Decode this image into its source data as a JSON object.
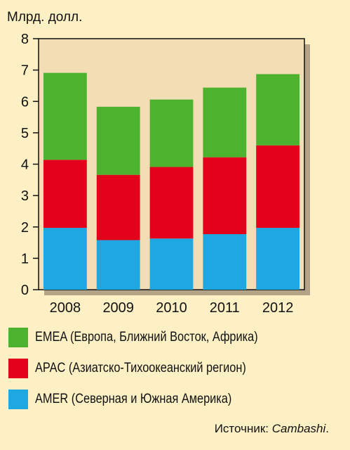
{
  "chart_data": {
    "type": "bar",
    "stacked": true,
    "ylabel": "Млрд. долл.",
    "ylim": [
      0,
      8
    ],
    "yticks": [
      0,
      1,
      2,
      3,
      4,
      5,
      6,
      7,
      8
    ],
    "categories": [
      "2008",
      "2009",
      "2010",
      "2011",
      "2012"
    ],
    "series": [
      {
        "name": "AMER (Северная и Южная Америка)",
        "color": "#1ea7e1",
        "values": [
          1.97,
          1.58,
          1.63,
          1.77,
          1.97
        ]
      },
      {
        "name": "APAC (Азиатско-Тихоокеанский регион)",
        "color": "#e3001b",
        "values": [
          2.17,
          2.08,
          2.28,
          2.45,
          2.63
        ]
      },
      {
        "name": "EMEA (Европа, Ближний Восток, Африка)",
        "color": "#4db32e",
        "values": [
          2.77,
          2.17,
          2.15,
          2.22,
          2.27
        ]
      }
    ],
    "grid": false,
    "legend_position": "bottom",
    "plot_background": "#f2ddb4",
    "page_background": "#fdf0c4"
  },
  "legend": {
    "items": [
      {
        "label": "EMEA (Европа, Ближний Восток, Африка)",
        "color": "#4db32e"
      },
      {
        "label": "APAC (Азиатско-Тихоокеанский регион)",
        "color": "#e3001b"
      },
      {
        "label": "AMER (Северная и Южная Америка)",
        "color": "#1ea7e1"
      }
    ]
  },
  "source": {
    "prefix": "Источник: ",
    "name": "Cambashi",
    "suffix": "."
  }
}
